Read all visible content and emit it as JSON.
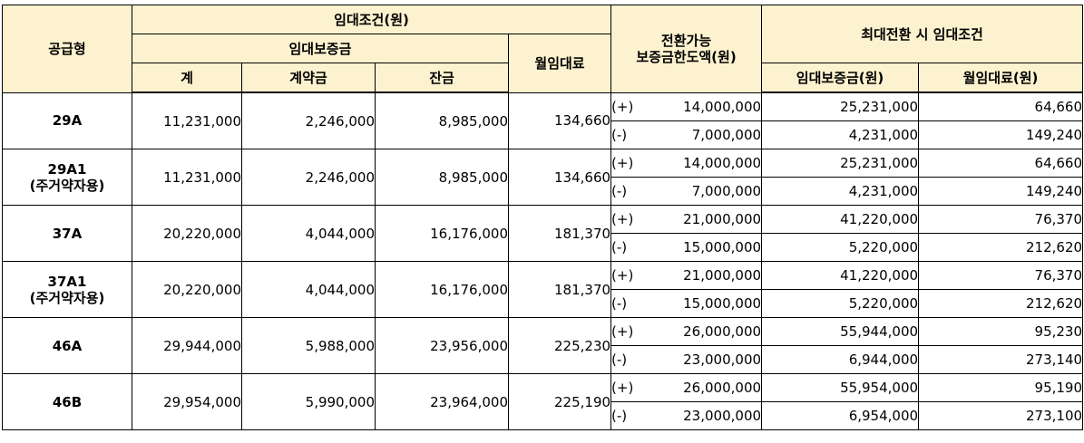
{
  "headers": {
    "supply_type": "공급형",
    "rent_conditions": "임대조건(원)",
    "deposit": "임대보증금",
    "total": "계",
    "contract_payment": "계약금",
    "balance": "잔금",
    "monthly_rent": "월임대료",
    "convertible_limit_line1": "전환가능",
    "convertible_limit_line2": "보증금한도액(원)",
    "max_conversion": "최대전환 시 임대조건",
    "max_deposit": "임대보증금(원)",
    "max_monthly_rent": "월임대료(원)"
  },
  "rows": [
    {
      "type_line1": "29A",
      "type_line2": "",
      "total": "11,231,000",
      "contract": "2,246,000",
      "balance": "8,985,000",
      "rent": "134,660",
      "plus": {
        "sign": "(+)",
        "amount": "14,000,000",
        "deposit": "25,231,000",
        "rent": "64,660"
      },
      "minus": {
        "sign": "(-)",
        "amount": "7,000,000",
        "deposit": "4,231,000",
        "rent": "149,240"
      }
    },
    {
      "type_line1": "29A1",
      "type_line2": "(주거약자용)",
      "total": "11,231,000",
      "contract": "2,246,000",
      "balance": "8,985,000",
      "rent": "134,660",
      "plus": {
        "sign": "(+)",
        "amount": "14,000,000",
        "deposit": "25,231,000",
        "rent": "64,660"
      },
      "minus": {
        "sign": "(-)",
        "amount": "7,000,000",
        "deposit": "4,231,000",
        "rent": "149,240"
      }
    },
    {
      "type_line1": "37A",
      "type_line2": "",
      "total": "20,220,000",
      "contract": "4,044,000",
      "balance": "16,176,000",
      "rent": "181,370",
      "plus": {
        "sign": "(+)",
        "amount": "21,000,000",
        "deposit": "41,220,000",
        "rent": "76,370"
      },
      "minus": {
        "sign": "(-)",
        "amount": "15,000,000",
        "deposit": "5,220,000",
        "rent": "212,620"
      }
    },
    {
      "type_line1": "37A1",
      "type_line2": "(주거약자용)",
      "total": "20,220,000",
      "contract": "4,044,000",
      "balance": "16,176,000",
      "rent": "181,370",
      "plus": {
        "sign": "(+)",
        "amount": "21,000,000",
        "deposit": "41,220,000",
        "rent": "76,370"
      },
      "minus": {
        "sign": "(-)",
        "amount": "15,000,000",
        "deposit": "5,220,000",
        "rent": "212,620"
      }
    },
    {
      "type_line1": "46A",
      "type_line2": "",
      "total": "29,944,000",
      "contract": "5,988,000",
      "balance": "23,956,000",
      "rent": "225,230",
      "plus": {
        "sign": "(+)",
        "amount": "26,000,000",
        "deposit": "55,944,000",
        "rent": "95,230"
      },
      "minus": {
        "sign": "(-)",
        "amount": "23,000,000",
        "deposit": "6,944,000",
        "rent": "273,140"
      }
    },
    {
      "type_line1": "46B",
      "type_line2": "",
      "total": "29,954,000",
      "contract": "5,990,000",
      "balance": "23,964,000",
      "rent": "225,190",
      "plus": {
        "sign": "(+)",
        "amount": "26,000,000",
        "deposit": "55,954,000",
        "rent": "95,190"
      },
      "minus": {
        "sign": "(-)",
        "amount": "23,000,000",
        "deposit": "6,954,000",
        "rent": "273,100"
      }
    }
  ]
}
